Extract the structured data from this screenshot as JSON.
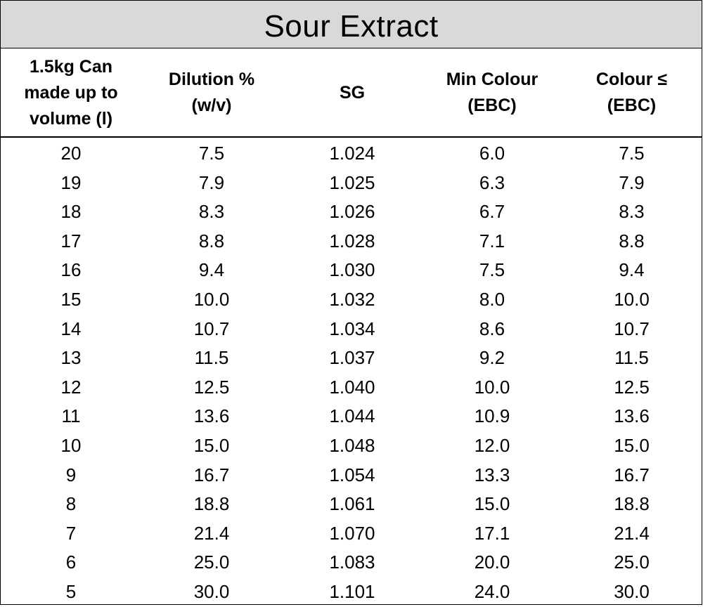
{
  "title": "Sour Extract",
  "columns": [
    "1.5kg Can\nmade up to\nvolume (l)",
    "Dilution %\n(w/v)",
    "SG",
    "Min Colour\n(EBC)",
    "Colour ≤\n(EBC)"
  ],
  "rows": [
    [
      "20",
      "7.5",
      "1.024",
      "6.0",
      "7.5"
    ],
    [
      "19",
      "7.9",
      "1.025",
      "6.3",
      "7.9"
    ],
    [
      "18",
      "8.3",
      "1.026",
      "6.7",
      "8.3"
    ],
    [
      "17",
      "8.8",
      "1.028",
      "7.1",
      "8.8"
    ],
    [
      "16",
      "9.4",
      "1.030",
      "7.5",
      "9.4"
    ],
    [
      "15",
      "10.0",
      "1.032",
      "8.0",
      "10.0"
    ],
    [
      "14",
      "10.7",
      "1.034",
      "8.6",
      "10.7"
    ],
    [
      "13",
      "11.5",
      "1.037",
      "9.2",
      "11.5"
    ],
    [
      "12",
      "12.5",
      "1.040",
      "10.0",
      "12.5"
    ],
    [
      "11",
      "13.6",
      "1.044",
      "10.9",
      "13.6"
    ],
    [
      "10",
      "15.0",
      "1.048",
      "12.0",
      "15.0"
    ],
    [
      "9",
      "16.7",
      "1.054",
      "13.3",
      "16.7"
    ],
    [
      "8",
      "18.8",
      "1.061",
      "15.0",
      "18.8"
    ],
    [
      "7",
      "21.4",
      "1.070",
      "17.1",
      "21.4"
    ],
    [
      "6",
      "25.0",
      "1.083",
      "20.0",
      "25.0"
    ],
    [
      "5",
      "30.0",
      "1.101",
      "24.0",
      "30.0"
    ]
  ]
}
